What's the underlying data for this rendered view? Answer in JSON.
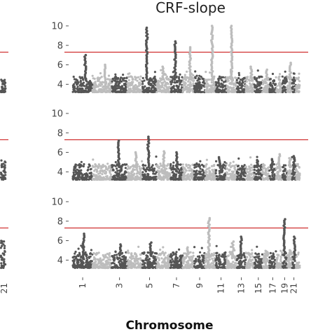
{
  "chart_data": {
    "type": "scatter",
    "title": "CRF-slope",
    "xlabel": "Chromosome",
    "ylabel": "",
    "ylim": [
      3,
      10.5
    ],
    "yticks": [
      4,
      6,
      8,
      10
    ],
    "grid": false,
    "significance_line": {
      "value": 7.3,
      "color": "#d03030"
    },
    "chromosomes": [
      "1",
      "2",
      "3",
      "4",
      "5",
      "6",
      "7",
      "8",
      "9",
      "10",
      "11",
      "12",
      "13",
      "14",
      "15",
      "16",
      "17",
      "18",
      "19",
      "20",
      "21",
      "22"
    ],
    "x_tick_labels": [
      "1",
      "3",
      "5",
      "7",
      "9",
      "11",
      "13",
      "15",
      "17",
      "19",
      "21"
    ],
    "left_partial_tick_label": "21",
    "point_colors": [
      "#555555",
      "#bdbdbd"
    ],
    "panels": [
      {
        "name": "top",
        "peaks": [
          [
            1,
            7.0
          ],
          [
            2,
            6.0
          ],
          [
            5,
            9.8
          ],
          [
            6,
            5.8
          ],
          [
            7,
            8.4
          ],
          [
            8,
            7.8
          ],
          [
            10,
            10.0
          ],
          [
            12,
            10.0
          ],
          [
            14,
            5.8
          ],
          [
            16,
            5.5
          ],
          [
            20,
            6.2
          ]
        ]
      },
      {
        "name": "middle",
        "peaks": [
          [
            3,
            7.2
          ],
          [
            4,
            6.0
          ],
          [
            5,
            7.6
          ],
          [
            6,
            6.1
          ],
          [
            7,
            6.0
          ],
          [
            11,
            5.5
          ],
          [
            15,
            5.2
          ],
          [
            17,
            5.3
          ],
          [
            18,
            5.8
          ],
          [
            20,
            5.4
          ],
          [
            21,
            5.6
          ]
        ]
      },
      {
        "name": "bottom",
        "peaks": [
          [
            1,
            6.7
          ],
          [
            3,
            5.6
          ],
          [
            5,
            5.8
          ],
          [
            8,
            5.3
          ],
          [
            10,
            8.3
          ],
          [
            12,
            5.9
          ],
          [
            13,
            6.4
          ],
          [
            16,
            4.9
          ],
          [
            19,
            8.2
          ],
          [
            20,
            5.0
          ],
          [
            21,
            6.4
          ]
        ]
      }
    ]
  }
}
